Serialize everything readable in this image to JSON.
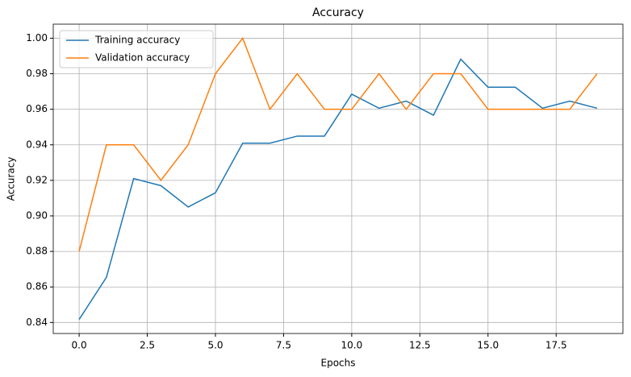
{
  "chart_data": {
    "type": "line",
    "title": "Accuracy",
    "x_label": "Epochs",
    "y_label": "Accuracy",
    "x": [
      0,
      1,
      2,
      3,
      4,
      5,
      6,
      7,
      8,
      9,
      10,
      11,
      12,
      13,
      14,
      15,
      16,
      17,
      18,
      19
    ],
    "series": [
      {
        "name": "Training accuracy",
        "color": "#1f77b4",
        "values": [
          0.8417,
          0.8654,
          0.921,
          0.917,
          0.905,
          0.913,
          0.9409,
          0.9409,
          0.9449,
          0.9449,
          0.9685,
          0.9606,
          0.9646,
          0.9567,
          0.9882,
          0.9724,
          0.9724,
          0.9606,
          0.9646,
          0.9606
        ]
      },
      {
        "name": "Validation accuracy",
        "color": "#ff7f0e",
        "values": [
          0.88,
          0.94,
          0.94,
          0.92,
          0.94,
          0.98,
          1.0,
          0.96,
          0.98,
          0.96,
          0.96,
          0.98,
          0.96,
          0.98,
          0.98,
          0.96,
          0.96,
          0.96,
          0.96,
          0.98
        ]
      }
    ],
    "xlim": [
      -0.95,
      19.95
    ],
    "ylim": [
      0.8338,
      1.0079
    ],
    "xticks": [
      {
        "value": 0,
        "label": "0.0"
      },
      2.5,
      {
        "value": 5,
        "label": "5.0"
      },
      7.5,
      {
        "value": 10,
        "label": "10.0"
      },
      12.5,
      {
        "value": 15,
        "label": "15.0"
      },
      17.5
    ],
    "yticks": [
      0.84,
      0.86,
      0.88,
      {
        "value": 0.9,
        "label": "0.90"
      },
      0.92,
      0.94,
      0.96,
      0.98,
      {
        "value": 1,
        "label": "1.00"
      }
    ],
    "grid": true,
    "legend": "upper left"
  }
}
